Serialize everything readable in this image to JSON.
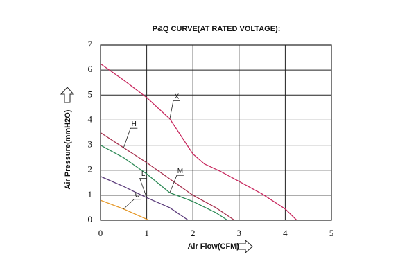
{
  "chart_data": {
    "type": "line",
    "title": "P&Q CURVE(AT RATED VOLTAGE):",
    "x_label": "Air Flow(CFM)",
    "y_label": "Air Pressure(mmH2O)",
    "xlim": [
      0,
      5
    ],
    "ylim": [
      0,
      7
    ],
    "xticks": [
      0,
      1,
      2,
      3,
      4,
      5
    ],
    "yticks": [
      0,
      1,
      2,
      3,
      4,
      5,
      6,
      7
    ],
    "grid": true,
    "series": [
      {
        "name": "X",
        "color": "#c8285e",
        "x": [
          0,
          0.5,
          1,
          1.5,
          2,
          2.25,
          2.6,
          3,
          3.5,
          4,
          4.25
        ],
        "values": [
          6.25,
          5.6,
          4.9,
          4.05,
          2.65,
          2.25,
          1.95,
          1.55,
          1.05,
          0.45,
          0
        ]
      },
      {
        "name": "H",
        "color": "#a8324f",
        "x": [
          0,
          0.5,
          1,
          1.5,
          2,
          2.5,
          2.9
        ],
        "values": [
          3.5,
          2.9,
          2.3,
          1.65,
          1.0,
          0.5,
          0
        ]
      },
      {
        "name": "M",
        "color": "#2e8b57",
        "x": [
          0,
          0.5,
          1,
          1.5,
          2,
          2.5,
          2.75
        ],
        "values": [
          3.0,
          2.5,
          1.85,
          1.1,
          0.75,
          0.3,
          0
        ]
      },
      {
        "name": "L",
        "color": "#5a3a7a",
        "x": [
          0,
          0.5,
          1,
          1.5,
          1.9
        ],
        "values": [
          1.75,
          1.35,
          0.9,
          0.5,
          0
        ]
      },
      {
        "name": "U",
        "color": "#e69a2c",
        "x": [
          0,
          0.5,
          1.05
        ],
        "values": [
          0.8,
          0.45,
          0
        ]
      }
    ]
  }
}
